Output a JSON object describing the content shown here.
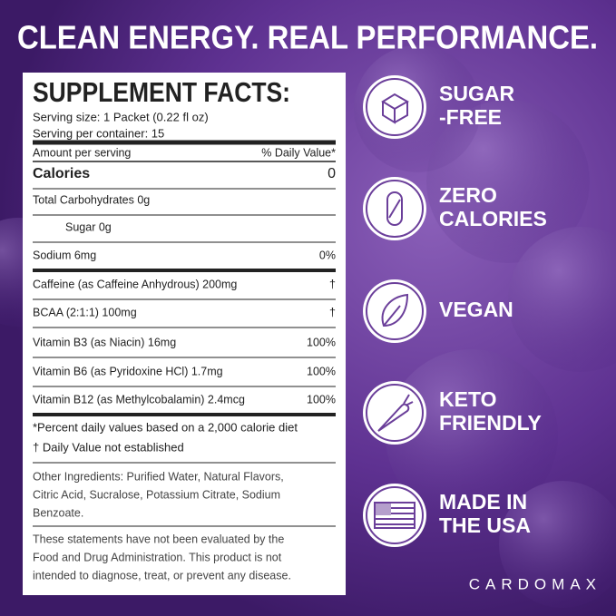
{
  "header": {
    "title": "CLEAN ENERGY. REAL PERFORMANCE."
  },
  "facts": {
    "title": "SUPPLEMENT FACTS:",
    "serving_size": "Serving size: 1 Packet (0.22 fl oz)",
    "servings": "Serving per container: 15",
    "amount_header": "Amount per serving",
    "dv_header": "% Daily Value*",
    "rows": [
      {
        "label": "Calories",
        "dv": "0"
      },
      {
        "label": "Total Carbohydrates   0g"
      },
      {
        "label": "Sugar   0g"
      },
      {
        "label": "Sodium   6mg",
        "dv": "0%"
      },
      {
        "label": "Caffeine (as Caffeine Anhydrous) 200mg",
        "dv": "†"
      },
      {
        "label": "BCAA (2:1:1) 100mg",
        "dv": "†"
      },
      {
        "label": "Vitamin B3 (as Niacin) 16mg",
        "dv": "100%"
      },
      {
        "label": "Vitamin B6 (as Pyridoxine HCl) 1.7mg",
        "dv": "100%"
      },
      {
        "label": "Vitamin B12 (as Methylcobalamin) 2.4mcg",
        "dv": "100%"
      }
    ],
    "footnotes": [
      "*Percent daily values based on a 2,000 calorie diet",
      "† Daily Value not established"
    ],
    "ingredients": [
      "Other Ingredients: Purified Water, Natural Flavors,",
      "Citric Acid, Sucralose, Potassium Citrate, Sodium",
      "Benzoate."
    ],
    "disclaimer": [
      "These statements have not been evaluated by the",
      "Food and Drug Administration. This product is not",
      "intended to diagnose, treat, or prevent any disease."
    ]
  },
  "badges": [
    {
      "lines": [
        "SUGAR",
        "-FREE"
      ]
    },
    {
      "lines": [
        "ZERO",
        "CALORIES"
      ]
    },
    {
      "lines": [
        "VEGAN"
      ]
    },
    {
      "lines": [
        "KETO",
        "FRIENDLY"
      ]
    },
    {
      "lines": [
        "MADE IN",
        "THE USA"
      ]
    }
  ],
  "brand": "CARDOMAX"
}
